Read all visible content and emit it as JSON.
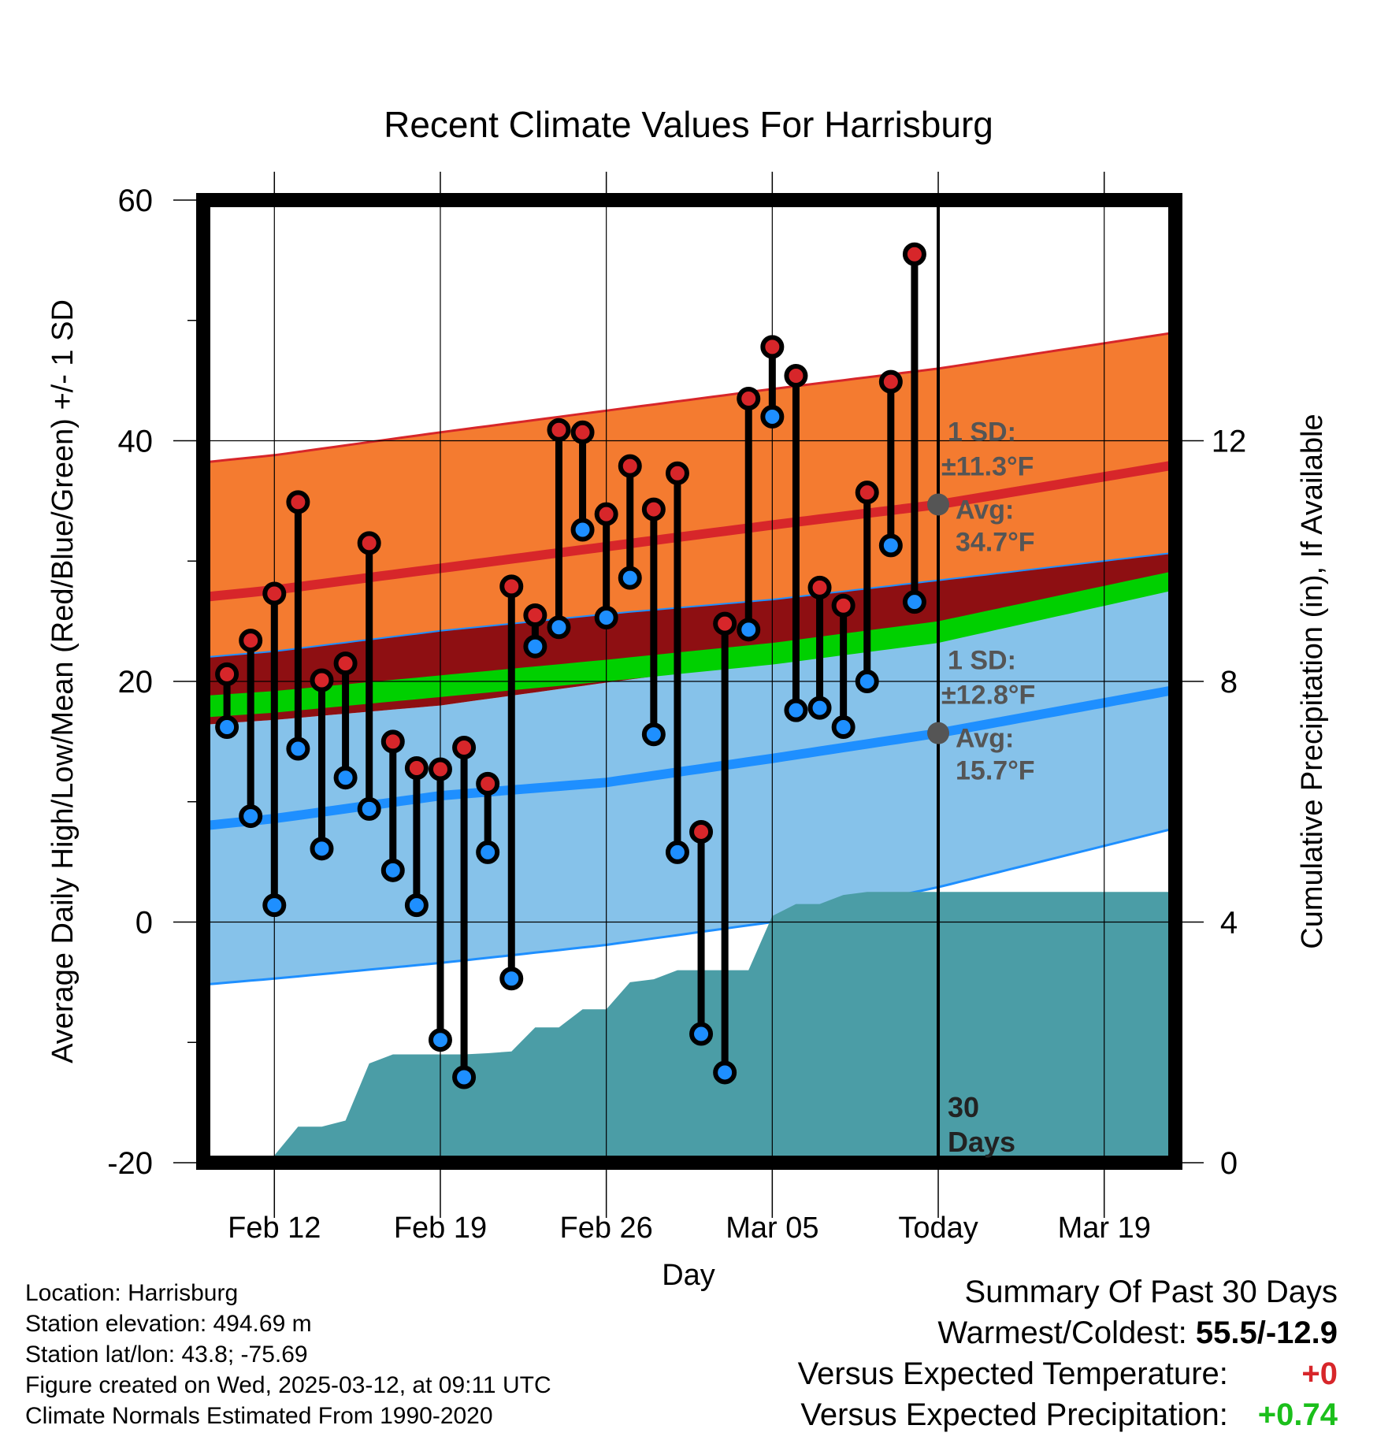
{
  "colors": {
    "high_series": "#d7262a",
    "low_series": "#1e8fff",
    "sd_high_band": "#f47b30",
    "sd_low_band": "#86c2ea",
    "mean_overlap_band": "#8e0f12",
    "mean_band": "#00d000",
    "precip_fill": "#4b9da6",
    "annotation_gray": "#555555",
    "warm_text": "#d7262a",
    "wet_text": "#1bbf1b"
  },
  "chart_data": {
    "type": "line",
    "title": "Recent Climate Values For Harrisburg",
    "xlabel": "Day",
    "ylabel": "Average Daily High/Low/Mean (Red/Blue/Green) +/- 1 SD",
    "y2label": "Cumulative Precipitation (in), If Available",
    "x_tick_labels": [
      "Feb 12",
      "Feb 19",
      "Feb 26",
      "Mar 05",
      "Today",
      "Mar 19"
    ],
    "x_tick_days": [
      0,
      7,
      14,
      21,
      28,
      35
    ],
    "x_range_days": [
      -3,
      38
    ],
    "ylim": [
      -20,
      60
    ],
    "y_ticks": [
      -20,
      0,
      20,
      40,
      60
    ],
    "y_minor_ticks": [
      -10,
      10,
      30,
      50
    ],
    "y2lim": [
      0,
      16
    ],
    "y2_ticks": [
      0,
      4,
      8,
      12
    ],
    "grid": true,
    "annotations": {
      "high_sd_label_1": "1 SD:",
      "high_sd_label_2": "±11.3°F",
      "high_avg_label_1": "Avg:",
      "high_avg_label_2": "34.7°F",
      "low_sd_label_1": "1 SD:",
      "low_sd_label_2": "±12.8°F",
      "low_avg_label_1": "Avg:",
      "low_avg_label_2": "15.7°F",
      "period_label_1": "30",
      "period_label_2": "Days",
      "today_high_avg": 34.7,
      "today_low_avg": 15.7
    },
    "normals": {
      "days": [
        -3,
        0,
        7,
        14,
        21,
        28,
        38
      ],
      "avg_high": [
        27,
        27.6,
        29.4,
        31.2,
        33.0,
        34.7,
        38.0
      ],
      "avg_high_plus_sd": [
        38.2,
        38.8,
        40.7,
        42.5,
        44.3,
        46.0,
        49.0
      ],
      "avg_high_minus_sd": [
        22.0,
        22.5,
        24.2,
        25.6,
        26.8,
        28.4,
        30.7
      ],
      "avg_mean_upper": [
        18.8,
        19.2,
        20.5,
        21.8,
        23.2,
        25.0,
        29.2
      ],
      "avg_mean_lower": [
        17.0,
        17.4,
        18.7,
        20.0,
        21.4,
        23.2,
        27.6
      ],
      "avg_low_plus_sd": [
        16.4,
        16.8,
        18.0,
        19.9,
        21.7,
        24.3,
        27.8
      ],
      "avg_low": [
        8.0,
        8.6,
        10.5,
        11.6,
        13.6,
        15.7,
        19.3
      ],
      "avg_low_minus_sd": [
        -5.2,
        -4.7,
        -3.4,
        -1.9,
        0.0,
        2.9,
        7.8
      ]
    },
    "series": [
      {
        "name": "High",
        "days": [
          -2,
          -1,
          0,
          1,
          2,
          3,
          4,
          5,
          6,
          7,
          8,
          9,
          10,
          11,
          12,
          13,
          14,
          15,
          16,
          17,
          18,
          19,
          20,
          21,
          22,
          23,
          24,
          25,
          26,
          27
        ],
        "values": [
          20.6,
          23.4,
          27.3,
          34.9,
          20.1,
          21.5,
          31.5,
          15.0,
          12.8,
          12.7,
          14.5,
          11.5,
          27.9,
          25.5,
          40.9,
          40.7,
          33.9,
          37.9,
          34.3,
          37.3,
          7.5,
          24.8,
          43.5,
          47.8,
          45.4,
          27.8,
          26.3,
          35.7,
          44.9,
          55.5
        ]
      },
      {
        "name": "Low",
        "days": [
          -2,
          -1,
          0,
          1,
          2,
          3,
          4,
          5,
          6,
          7,
          8,
          9,
          10,
          11,
          12,
          13,
          14,
          15,
          16,
          17,
          18,
          19,
          20,
          21,
          22,
          23,
          24,
          25,
          26,
          27
        ],
        "values": [
          16.2,
          8.8,
          1.4,
          14.4,
          6.1,
          12.0,
          9.4,
          4.3,
          1.4,
          -9.8,
          -12.9,
          5.8,
          -4.7,
          22.9,
          24.5,
          32.6,
          25.3,
          28.6,
          15.6,
          5.8,
          -9.3,
          -12.5,
          24.3,
          42.0,
          17.6,
          17.8,
          16.2,
          20.0,
          31.3,
          26.6
        ]
      },
      {
        "name": "Cumulative Precipitation",
        "days": [
          -3,
          -1,
          0,
          1,
          2,
          3,
          4,
          5,
          6,
          7,
          8,
          9,
          10,
          11,
          12,
          13,
          14,
          15,
          16,
          17,
          18,
          19,
          20,
          21,
          22,
          23,
          24,
          25,
          26,
          27,
          28,
          38
        ],
        "values": [
          0.0,
          0.02,
          0.12,
          0.6,
          0.6,
          0.7,
          1.65,
          1.8,
          1.8,
          1.8,
          1.8,
          1.82,
          1.85,
          2.25,
          2.25,
          2.55,
          2.55,
          3.0,
          3.05,
          3.2,
          3.2,
          3.2,
          3.2,
          4.1,
          4.3,
          4.3,
          4.45,
          4.5,
          4.5,
          4.5,
          4.5,
          4.5
        ]
      }
    ]
  },
  "footer": {
    "location": "Location: Harrisburg",
    "elevation": "Station elevation: 494.69 m",
    "latlon": "Station lat/lon: 43.8; -75.69",
    "created": "Figure created on Wed, 2025-03-12, at 09:11 UTC",
    "normals": "Climate Normals Estimated From 1990-2020"
  },
  "summary": {
    "heading": "Summary Of Past 30 Days",
    "warmest_coldest_label": "Warmest/Coldest:",
    "warmest_coldest_value": "55.5/-12.9",
    "temp_label": "Versus Expected Temperature:",
    "temp_value": "+0",
    "precip_label": "Versus Expected Precipitation:",
    "precip_value": "+0.74"
  }
}
